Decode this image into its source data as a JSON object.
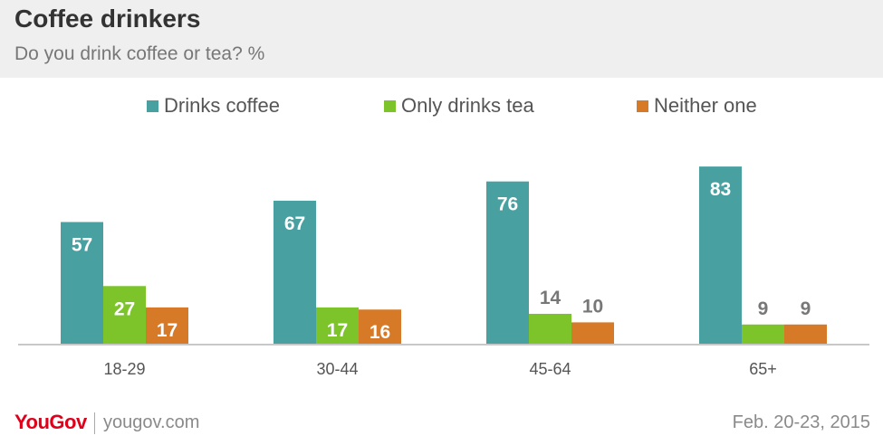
{
  "header": {
    "title": "Coffee drinkers",
    "subtitle": "Do you drink coffee or tea? %"
  },
  "colors": {
    "coffee": "#48a0a0",
    "tea": "#7dc42b",
    "neither": "#d67a27",
    "label_inside": "#ffffff",
    "label_outside": "#777777",
    "brand": "#e1001a"
  },
  "chart_data": {
    "type": "bar",
    "title": "Coffee drinkers",
    "subtitle": "Do you drink coffee or tea? %",
    "categories": [
      "18-29",
      "30-44",
      "45-64",
      "65+"
    ],
    "series": [
      {
        "name": "Drinks coffee",
        "values": [
          57,
          67,
          76,
          83
        ]
      },
      {
        "name": "Only drinks tea",
        "values": [
          27,
          17,
          14,
          9
        ]
      },
      {
        "name": "Neither one",
        "values": [
          17,
          16,
          10,
          9
        ]
      }
    ],
    "ylim": [
      0,
      100
    ],
    "grid": false,
    "legend": "top"
  },
  "footer": {
    "brand": "YouGov",
    "site": "yougov.com",
    "date": "Feb. 20-23, 2015"
  }
}
